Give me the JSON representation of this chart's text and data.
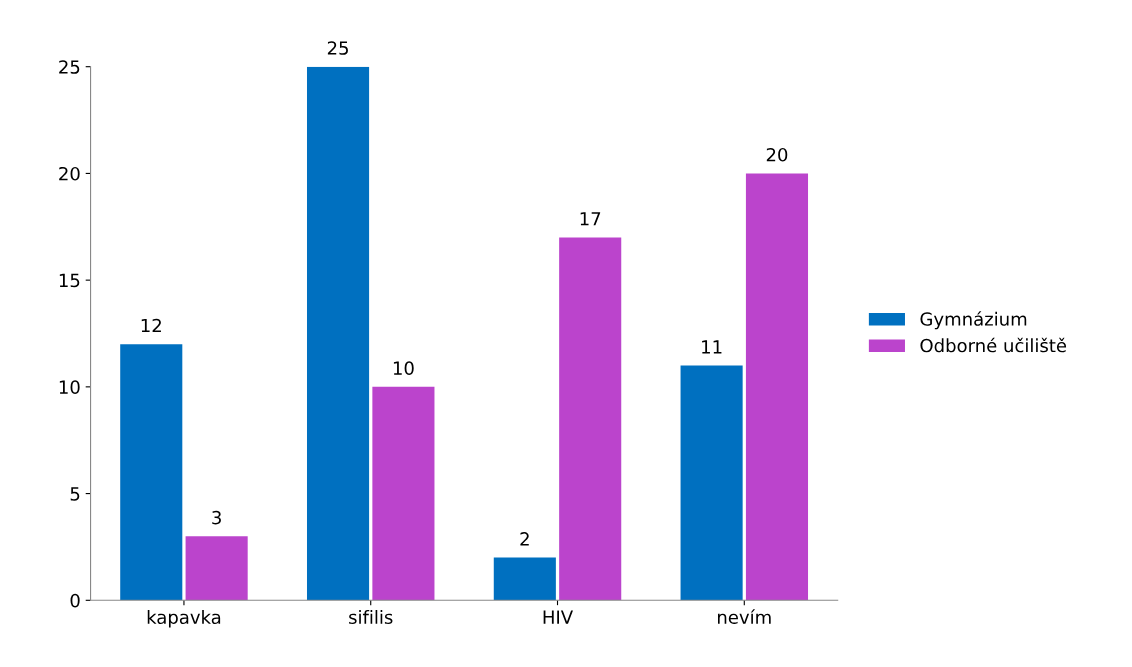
{
  "chart_data": {
    "type": "bar",
    "categories": [
      "kapavka",
      "sifilis",
      "HIV",
      "nevím"
    ],
    "series": [
      {
        "name": "Gymnázium",
        "color": "#0070c0",
        "values": [
          12,
          25,
          2,
          11
        ]
      },
      {
        "name": "Odborné učiliště",
        "color": "#bb44cc",
        "values": [
          3,
          10,
          17,
          20
        ]
      }
    ],
    "ylim": [
      0,
      25
    ],
    "yticks": [
      0,
      5,
      10,
      15,
      20,
      25
    ],
    "grid": false,
    "legend": "right",
    "data_labels": true
  }
}
